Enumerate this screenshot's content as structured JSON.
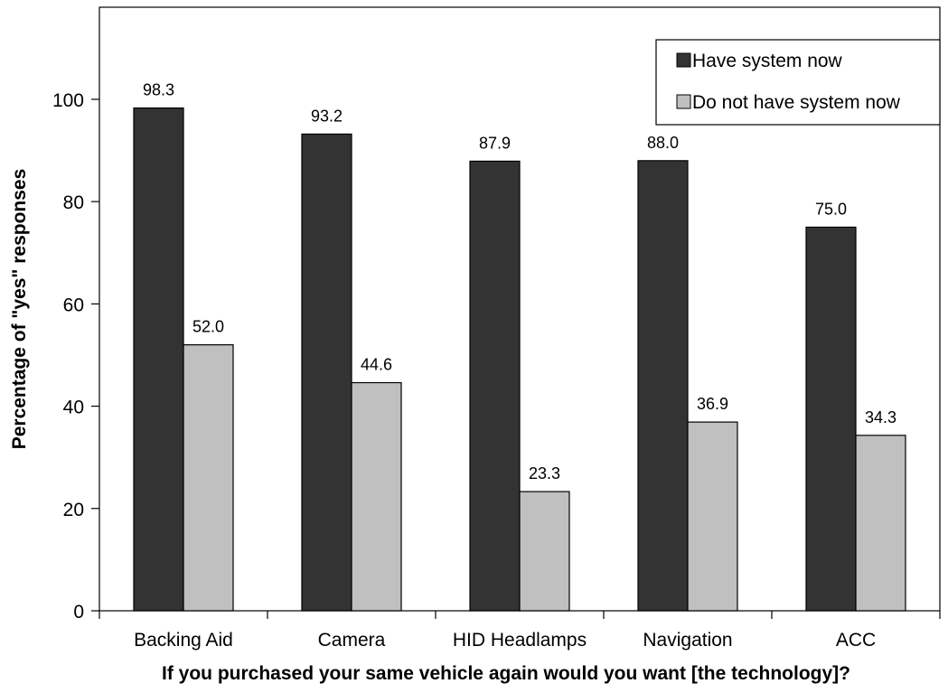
{
  "chart_data": {
    "type": "bar",
    "title": "",
    "xlabel": "If you purchased your same vehicle again would you want [the technology]?",
    "ylabel": "Percentage of \"yes\" responses",
    "categories": [
      "Backing Aid",
      "Camera",
      "HID Headlamps",
      "Navigation",
      "ACC"
    ],
    "series": [
      {
        "name": "Have system now",
        "color": "#333333",
        "values": [
          98.3,
          93.2,
          87.9,
          88.0,
          75.0
        ]
      },
      {
        "name": "Do not have system now",
        "color": "#c0c0c0",
        "values": [
          52.0,
          44.6,
          23.3,
          36.9,
          34.3
        ]
      }
    ],
    "ylim": [
      0,
      118
    ],
    "yticks": [
      0,
      20,
      40,
      60,
      80,
      100
    ],
    "grid": false,
    "legend_position": "top-right",
    "data_labels": true
  }
}
